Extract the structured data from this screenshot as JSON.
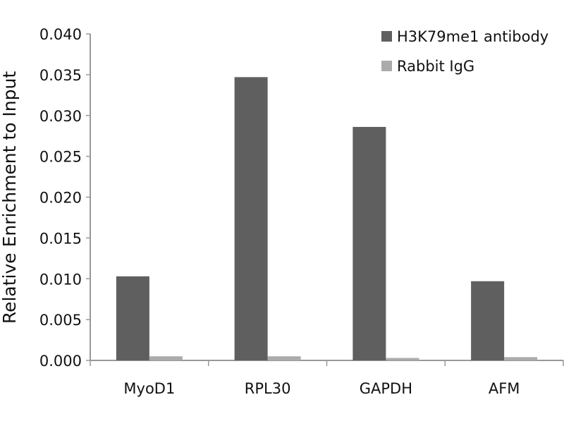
{
  "chart_data": {
    "type": "bar",
    "title": "",
    "xlabel": "",
    "ylabel": "Relative Enrichment to Input",
    "ylim": [
      0,
      0.04
    ],
    "yticks": [
      "0.000",
      "0.005",
      "0.010",
      "0.015",
      "0.020",
      "0.025",
      "0.030",
      "0.035",
      "0.040"
    ],
    "categories": [
      "MyoD1",
      "RPL30",
      "GAPDH",
      "AFM"
    ],
    "series": [
      {
        "name": "H3K79me1 antibody",
        "color": "#5f5f5f",
        "values": [
          0.0103,
          0.0347,
          0.0286,
          0.0097
        ]
      },
      {
        "name": "Rabbit IgG",
        "color": "#ababab",
        "values": [
          0.0005,
          0.0005,
          0.0003,
          0.0004
        ]
      }
    ],
    "grid": false,
    "legend_position": "top-right"
  }
}
